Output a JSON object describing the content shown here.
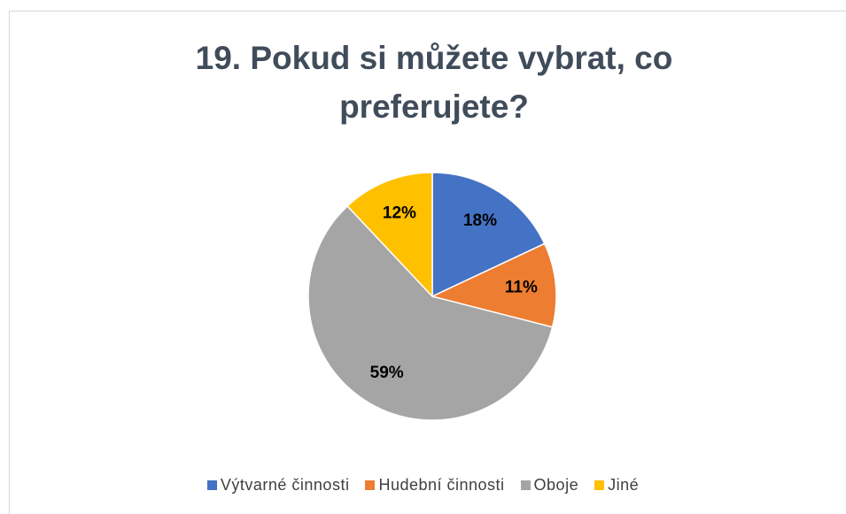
{
  "chart_data": {
    "type": "pie",
    "title": "19. Pokud si můžete vybrat, co preferujete?",
    "categories": [
      "Výtvarné činnosti",
      "Hudební činnosti",
      "Oboje",
      "Jiné"
    ],
    "values": [
      18,
      11,
      59,
      12
    ],
    "value_labels": [
      "18%",
      "11%",
      "59%",
      "12%"
    ],
    "colors": [
      "#4472c4",
      "#ed7d31",
      "#a5a5a5",
      "#ffc000"
    ],
    "legend": "bottom"
  }
}
